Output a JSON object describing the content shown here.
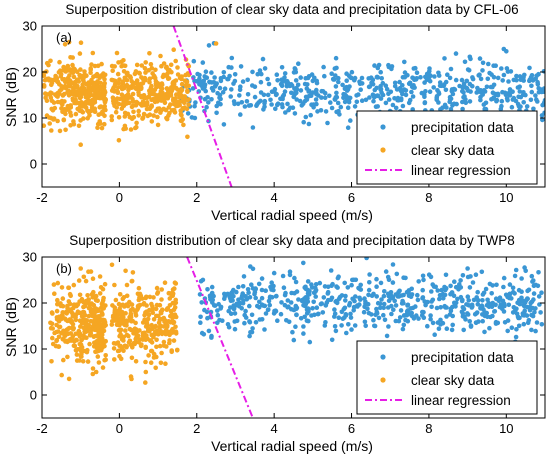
{
  "chart_data": [
    {
      "type": "scatter",
      "panel_label": "(a)",
      "title": "Superposition distribution of clear sky data and precipitation data by CFL-06",
      "xlabel": "Vertical radial speed (m/s)",
      "ylabel": "SNR (dB)",
      "xlim": [
        -2,
        11
      ],
      "ylim": [
        -5,
        30
      ],
      "xticks": [
        "-2",
        "0",
        "2",
        "4",
        "6",
        "8",
        "10"
      ],
      "yticks": [
        "-0",
        "0",
        "10",
        "20",
        "30"
      ],
      "legend_position": "lower-right",
      "series": [
        {
          "name": "precipitation data",
          "color": "#3a96d4",
          "marker": "dot",
          "cloud": {
            "x_range": [
              1.6,
              11.0
            ],
            "y_mean": 16,
            "y_spread": 3.2,
            "count": 620
          },
          "points": [
            [
              2.6,
              16.5
            ],
            [
              5.6,
              23.0
            ],
            [
              8.7,
              24.0
            ],
            [
              10.0,
              24.5
            ],
            [
              1.7,
              14.5
            ]
          ]
        },
        {
          "name": "clear sky data",
          "color": "#f5a623",
          "marker": "dot",
          "cloud": {
            "x_range": [
              -2.0,
              1.8
            ],
            "y_mean": 15.5,
            "y_spread": 3.4,
            "gap_near_x": -0.3,
            "count": 680
          },
          "points": [
            [
              -1.3,
              26.5
            ],
            [
              2.5,
              26.2
            ],
            [
              -1.0,
              4.2
            ],
            [
              0.3,
              7.5
            ],
            [
              -1.8,
              8.8
            ],
            [
              1.0,
              8.5
            ]
          ]
        },
        {
          "name": "linear regression",
          "color": "#e61ee6",
          "style": "dash-dot",
          "line": [
            [
              1.4,
              30
            ],
            [
              2.9,
              -5
            ]
          ]
        }
      ]
    },
    {
      "type": "scatter",
      "panel_label": "(b)",
      "title": "Superposition distribution of clear sky data and precipitation data by TWP8",
      "xlabel": "Vertical radial speed (m/s)",
      "ylabel": "SNR (dB)",
      "xlim": [
        -2,
        11
      ],
      "ylim": [
        -5,
        30
      ],
      "xticks": [
        "-2",
        "0",
        "2",
        "4",
        "6",
        "8",
        "10"
      ],
      "yticks": [
        "0",
        "10",
        "20",
        "30"
      ],
      "legend_position": "lower-right",
      "series": [
        {
          "name": "precipitation data",
          "color": "#3a96d4",
          "marker": "dot",
          "cloud": {
            "x_range": [
              2.0,
              11.0
            ],
            "y_mean": 20,
            "y_spread": 3.3,
            "count": 660
          },
          "points": [
            [
              4.0,
              26.5
            ],
            [
              9.0,
              27.5
            ],
            [
              5.5,
              12.0
            ],
            [
              10.5,
              27.0
            ],
            [
              2.1,
              17.0
            ]
          ]
        },
        {
          "name": "clear sky data",
          "color": "#f5a623",
          "marker": "dot",
          "cloud": {
            "x_range": [
              -1.8,
              1.5
            ],
            "y_mean": 15.5,
            "y_spread": 4.0,
            "gap_near_x": -0.3,
            "count": 640
          },
          "points": [
            [
              -1.0,
              27.5
            ],
            [
              -0.8,
              26.8
            ],
            [
              -1.3,
              3.5
            ],
            [
              0.3,
              4.0
            ],
            [
              -0.6,
              5.0
            ]
          ]
        },
        {
          "name": "linear regression",
          "color": "#e61ee6",
          "style": "dash-dot",
          "line": [
            [
              1.75,
              30
            ],
            [
              3.45,
              -5
            ]
          ]
        }
      ]
    }
  ]
}
